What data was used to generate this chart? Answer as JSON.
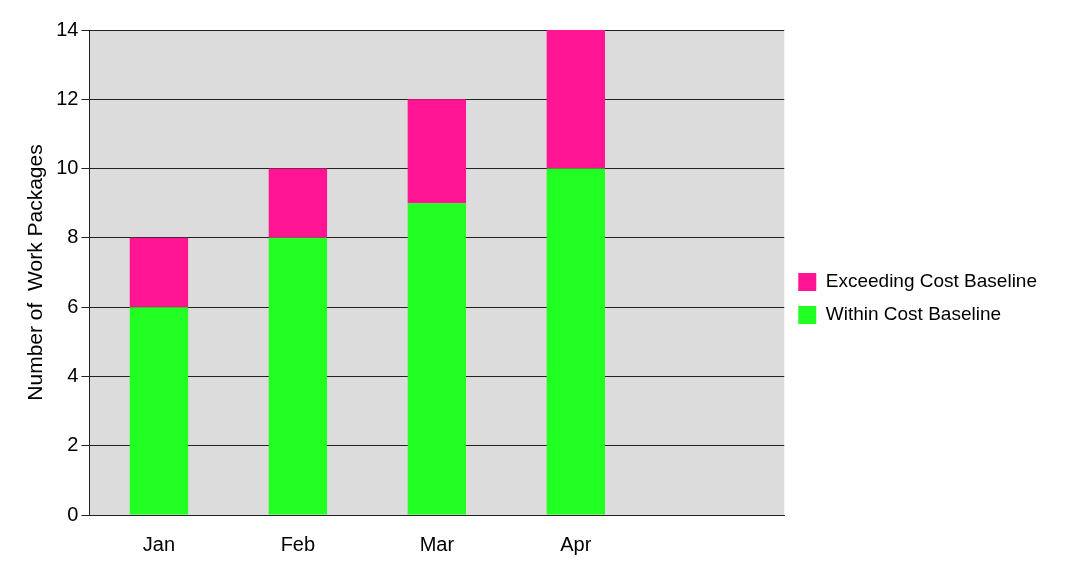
{
  "chart_data": {
    "type": "bar",
    "ylabel": "Number of  Work Packages",
    "categories": [
      "Jan",
      "Feb",
      "Mar",
      "Apr",
      null
    ],
    "series": [
      {
        "name": "Within Cost Baseline",
        "color": "#22ff22",
        "values": [
          6,
          8,
          9,
          10,
          null
        ]
      },
      {
        "name": "Exceeding Cost Baseline",
        "color": "#ff1493",
        "values": [
          2,
          2,
          3,
          4,
          null
        ]
      }
    ],
    "stacked": true,
    "ylim": [
      0,
      14
    ],
    "yticks": [
      0,
      2,
      4,
      6,
      8,
      10,
      12,
      14
    ],
    "grid": "y",
    "legend": "right"
  }
}
